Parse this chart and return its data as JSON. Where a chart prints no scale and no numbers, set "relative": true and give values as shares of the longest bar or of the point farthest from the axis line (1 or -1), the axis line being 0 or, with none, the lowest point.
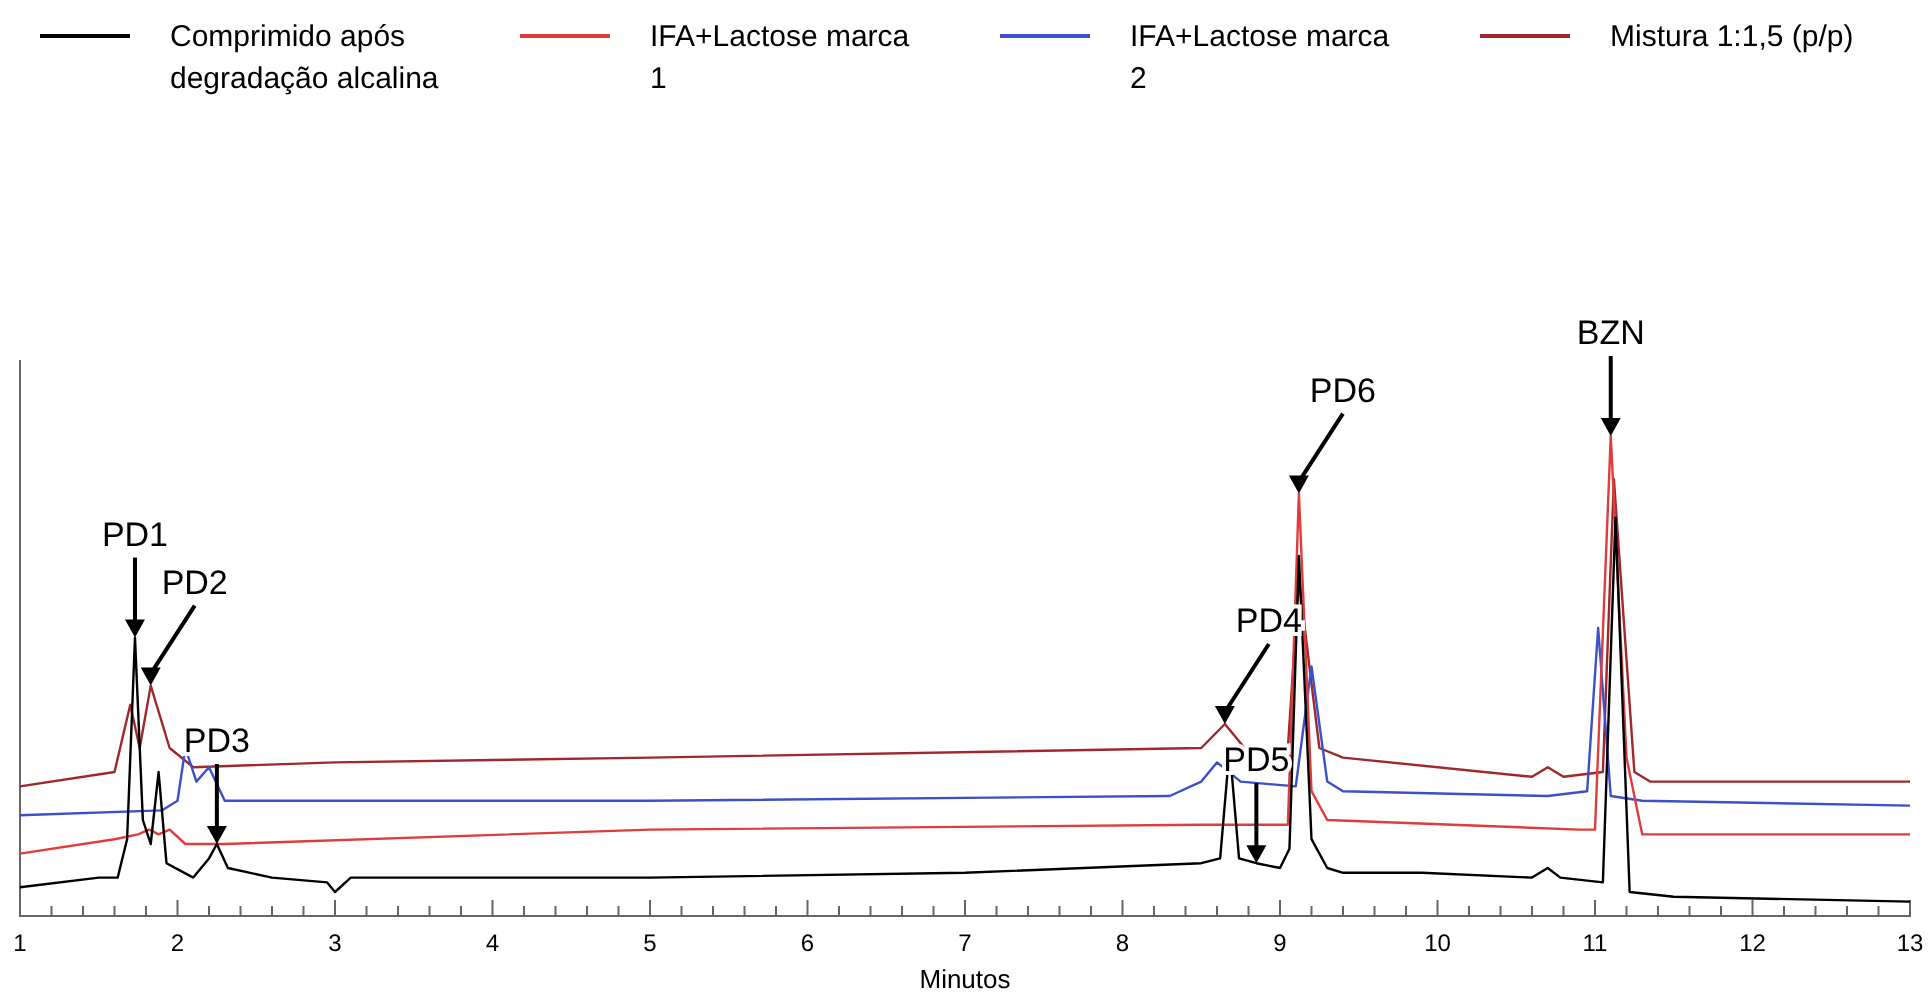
{
  "chart_data": {
    "type": "line",
    "relative": true,
    "xlabel": "Minutos",
    "xlim": [
      1,
      13
    ],
    "xticks": [
      1,
      {
        "value": 1.2,
        "label": null
      },
      {
        "value": 1.4,
        "label": null
      },
      {
        "value": 1.6,
        "label": null
      },
      {
        "value": 1.8,
        "label": null
      },
      2,
      {
        "value": 2.2,
        "label": null
      },
      {
        "value": 2.4,
        "label": null
      },
      {
        "value": 2.6,
        "label": null
      },
      {
        "value": 2.8,
        "label": null
      },
      3,
      {
        "value": 3.2,
        "label": null
      },
      {
        "value": 3.4,
        "label": null
      },
      {
        "value": 3.6,
        "label": null
      },
      {
        "value": 3.8,
        "label": null
      },
      4,
      {
        "value": 4.2,
        "label": null
      },
      {
        "value": 4.4,
        "label": null
      },
      {
        "value": 4.6,
        "label": null
      },
      {
        "value": 4.8,
        "label": null
      },
      5,
      {
        "value": 5.2,
        "label": null
      },
      {
        "value": 5.4,
        "label": null
      },
      {
        "value": 5.6,
        "label": null
      },
      {
        "value": 5.8,
        "label": null
      },
      6,
      {
        "value": 6.2,
        "label": null
      },
      {
        "value": 6.4,
        "label": null
      },
      {
        "value": 6.6,
        "label": null
      },
      {
        "value": 6.8,
        "label": null
      },
      7,
      {
        "value": 7.2,
        "label": null
      },
      {
        "value": 7.4,
        "label": null
      },
      {
        "value": 7.6,
        "label": null
      },
      {
        "value": 7.8,
        "label": null
      },
      8,
      {
        "value": 8.2,
        "label": null
      },
      {
        "value": 8.4,
        "label": null
      },
      {
        "value": 8.6,
        "label": null
      },
      {
        "value": 8.8,
        "label": null
      },
      9,
      {
        "value": 9.2,
        "label": null
      },
      {
        "value": 9.4,
        "label": null
      },
      {
        "value": 9.6,
        "label": null
      },
      {
        "value": 9.8,
        "label": null
      },
      10,
      {
        "value": 10.2,
        "label": null
      },
      {
        "value": 10.4,
        "label": null
      },
      {
        "value": 10.6,
        "label": null
      },
      {
        "value": 10.8,
        "label": null
      },
      11,
      {
        "value": 11.2,
        "label": null
      },
      {
        "value": 11.4,
        "label": null
      },
      {
        "value": 11.6,
        "label": null
      },
      {
        "value": 11.8,
        "label": null
      },
      12,
      {
        "value": 12.2,
        "label": null
      },
      {
        "value": 12.4,
        "label": null
      },
      {
        "value": 12.6,
        "label": null
      },
      {
        "value": 12.8,
        "label": null
      },
      13
    ],
    "legend": "top",
    "grid": false,
    "marker": "none",
    "line_style": "solid",
    "series": [
      {
        "name": "Comprimido após degradação alcalina",
        "color": "#000000",
        "x": [
          1,
          1.5,
          1.62,
          1.68,
          1.73,
          1.78,
          1.83,
          1.88,
          1.93,
          2.1,
          2.2,
          2.25,
          2.32,
          2.6,
          2.95,
          3,
          3.1,
          5,
          7,
          8.5,
          8.62,
          8.68,
          8.74,
          8.85,
          9,
          9.06,
          9.12,
          9.2,
          9.3,
          9.4,
          9.9,
          10.6,
          10.7,
          10.78,
          11.05,
          11.13,
          11.22,
          11.5,
          13
        ],
        "values": [
          0.06,
          0.08,
          0.08,
          0.16,
          0.58,
          0.2,
          0.15,
          0.3,
          0.11,
          0.08,
          0.12,
          0.15,
          0.1,
          0.08,
          0.07,
          0.05,
          0.08,
          0.08,
          0.09,
          0.11,
          0.12,
          0.35,
          0.12,
          0.11,
          0.1,
          0.14,
          0.75,
          0.16,
          0.1,
          0.09,
          0.09,
          0.08,
          0.1,
          0.08,
          0.07,
          0.83,
          0.05,
          0.04,
          0.03
        ]
      },
      {
        "name": "IFA+Lactose marca 1",
        "color": "#e03c3c",
        "x": [
          1,
          1.6,
          1.75,
          1.82,
          1.88,
          1.95,
          2.05,
          2.3,
          5,
          8.5,
          9.05,
          9.12,
          9.2,
          9.3,
          10.9,
          11,
          11.1,
          11.2,
          11.3,
          13
        ],
        "values": [
          0.13,
          0.16,
          0.17,
          0.18,
          0.17,
          0.18,
          0.15,
          0.15,
          0.18,
          0.19,
          0.19,
          0.88,
          0.26,
          0.2,
          0.18,
          0.18,
          1,
          0.33,
          0.17,
          0.17
        ]
      },
      {
        "name": "IFA+Lactose marca 2",
        "color": "#3c50c8",
        "x": [
          1,
          1.9,
          2,
          2.05,
          2.12,
          2.2,
          2.3,
          3,
          5,
          8.3,
          8.5,
          8.6,
          8.75,
          9.1,
          9.2,
          9.3,
          9.4,
          10.7,
          10.95,
          11.02,
          11.1,
          11.3,
          13
        ],
        "values": [
          0.21,
          0.22,
          0.24,
          0.35,
          0.28,
          0.31,
          0.24,
          0.24,
          0.24,
          0.25,
          0.28,
          0.32,
          0.28,
          0.27,
          0.52,
          0.28,
          0.26,
          0.25,
          0.26,
          0.6,
          0.25,
          0.24,
          0.23
        ]
      },
      {
        "name": "Mistura 1:1,5 (p/p)",
        "color": "#a0282c",
        "x": [
          1,
          1.6,
          1.7,
          1.76,
          1.83,
          1.95,
          2.1,
          3,
          5,
          8.5,
          8.65,
          8.8,
          9.05,
          9.12,
          9.25,
          9.4,
          10.6,
          10.7,
          10.8,
          11.05,
          11.12,
          11.25,
          11.35,
          13
        ],
        "values": [
          0.27,
          0.3,
          0.44,
          0.35,
          0.48,
          0.35,
          0.31,
          0.32,
          0.33,
          0.35,
          0.4,
          0.34,
          0.35,
          0.7,
          0.35,
          0.33,
          0.29,
          0.31,
          0.29,
          0.3,
          0.91,
          0.3,
          0.28,
          0.28
        ]
      }
    ],
    "annotations": [
      {
        "text": "PD1",
        "x": 1.73,
        "y": 0.58
      },
      {
        "text": "PD2",
        "x": 1.83,
        "y": 0.48
      },
      {
        "text": "PD3",
        "x": 2.25,
        "y": 0.15
      },
      {
        "text": "PD4",
        "x": 8.65,
        "y": 0.4
      },
      {
        "text": "PD5",
        "x": 8.85,
        "y": 0.11
      },
      {
        "text": "PD6",
        "x": 9.12,
        "y": 0.88
      },
      {
        "text": "BZN",
        "x": 11.1,
        "y": 1
      }
    ]
  }
}
